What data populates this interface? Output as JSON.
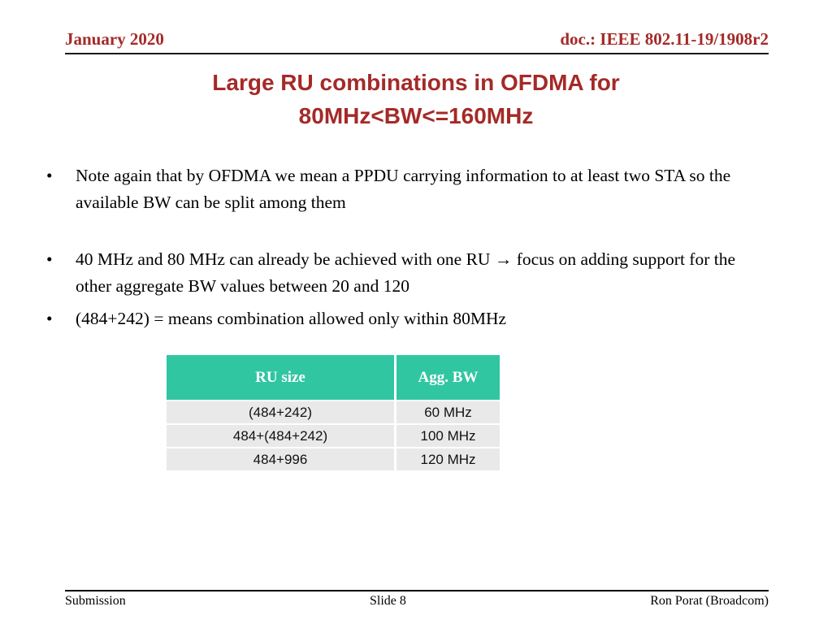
{
  "colors": {
    "accent": "#A42A28",
    "table-header-bg": "#31C6A2",
    "table-row-bg": "#E9E9E9",
    "rule": "#1A1A1A"
  },
  "header": {
    "date": "January 2020",
    "doc": "doc.: IEEE 802.11-19/1908r2"
  },
  "title": {
    "line1": "Large RU combinations in OFDMA for",
    "line2": "80MHz<BW<=160MHz"
  },
  "bullets": [
    "Note again that by OFDMA we mean a PPDU carrying information to at least two STA so the available BW can be split among them",
    "40 MHz and 80 MHz can already be achieved with one RU → focus on adding support for the other aggregate BW values between 20 and 120",
    "(484+242) = means combination allowed only within 80MHz"
  ],
  "table": {
    "headers": [
      "RU size",
      "Agg. BW"
    ],
    "rows": [
      [
        "(484+242)",
        "60 MHz"
      ],
      [
        "484+(484+242)",
        "100 MHz"
      ],
      [
        "484+996",
        "120 MHz"
      ]
    ]
  },
  "footer": {
    "left": "Submission",
    "center": "Slide 8",
    "right": "Ron Porat (Broadcom)"
  }
}
